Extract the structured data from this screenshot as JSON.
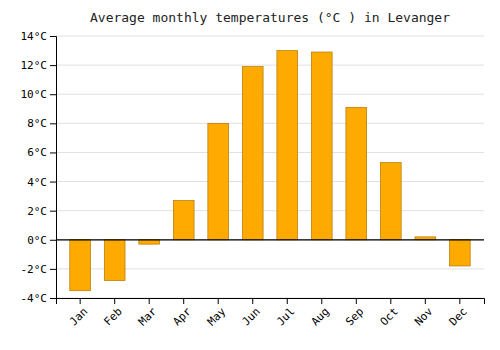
{
  "chart_data": {
    "type": "bar",
    "title": "Average monthly temperatures (°C ) in Levanger",
    "categories": [
      "Jan",
      "Feb",
      "Mar",
      "Apr",
      "May",
      "Jun",
      "Jul",
      "Aug",
      "Sep",
      "Oct",
      "Nov",
      "Dec"
    ],
    "values": [
      -3.5,
      -2.8,
      -0.3,
      2.7,
      8.0,
      11.9,
      13.0,
      12.9,
      9.1,
      5.3,
      0.2,
      -1.8
    ],
    "color": "#FFAA00",
    "ylim": [
      -4,
      14
    ],
    "yticks": [
      {
        "value": -4,
        "label": "-4°C"
      },
      {
        "value": -2,
        "label": "-2°C"
      },
      {
        "value": 0,
        "label": "0°C"
      },
      {
        "value": 2,
        "label": "2°C"
      },
      {
        "value": 4,
        "label": "4°C"
      },
      {
        "value": 6,
        "label": "6°C"
      },
      {
        "value": 8,
        "label": "8°C"
      },
      {
        "value": 10,
        "label": "10°C"
      },
      {
        "value": 12,
        "label": "12°C"
      },
      {
        "value": 14,
        "label": "14°C"
      }
    ],
    "grid": true
  }
}
